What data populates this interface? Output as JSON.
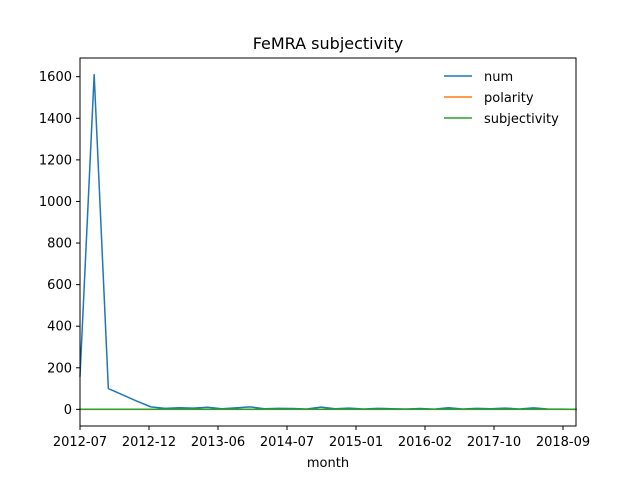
{
  "chart_data": {
    "type": "line",
    "title": "FeMRA subjectivity",
    "xlabel": "month",
    "ylabel": "",
    "x_tick_labels": [
      "2012-07",
      "2012-12",
      "2013-06",
      "2014-07",
      "2015-01",
      "2016-02",
      "2017-10",
      "2018-09"
    ],
    "y_tick_labels": [
      "0",
      "200",
      "400",
      "600",
      "800",
      "1000",
      "1200",
      "1400",
      "1600"
    ],
    "ylim": [
      -80,
      1690
    ],
    "grid": false,
    "legend_position": "top-right",
    "series": [
      {
        "name": "num",
        "color": "#1f77b4",
        "values": [
          160,
          1610,
          100,
          70,
          40,
          12,
          5,
          8,
          6,
          10,
          3,
          7,
          12,
          3,
          5,
          4,
          2,
          11,
          3,
          6,
          2,
          5,
          3,
          2,
          4,
          1,
          8,
          2,
          5,
          3,
          6,
          2,
          7,
          2,
          1,
          0
        ]
      },
      {
        "name": "polarity",
        "color": "#ff7f0e",
        "values": [
          0.1,
          0.1,
          0.1,
          0.1,
          0.1,
          0.1,
          0.1,
          0.1,
          0.1,
          0.1,
          0.1,
          0.1,
          0.1,
          0.1,
          0.1,
          0.1,
          0.1,
          0.1,
          0.1,
          0.1,
          0.1,
          0.1,
          0.1,
          0.1,
          0.1,
          0.1,
          0.1,
          0.1,
          0.1,
          0.1,
          0.1,
          0.1,
          0.1,
          0.1,
          0.1,
          0.1
        ]
      },
      {
        "name": "subjectivity",
        "color": "#2ca02c",
        "values": [
          0.4,
          0.4,
          0.4,
          0.4,
          0.4,
          0.4,
          0.4,
          0.4,
          0.4,
          0.4,
          0.4,
          0.4,
          0.4,
          0.4,
          0.4,
          0.4,
          0.4,
          0.4,
          0.4,
          0.4,
          0.4,
          0.4,
          0.4,
          0.4,
          0.4,
          0.4,
          0.4,
          0.4,
          0.4,
          0.4,
          0.4,
          0.4,
          0.4,
          0.4,
          0.4,
          0.4
        ]
      }
    ]
  }
}
